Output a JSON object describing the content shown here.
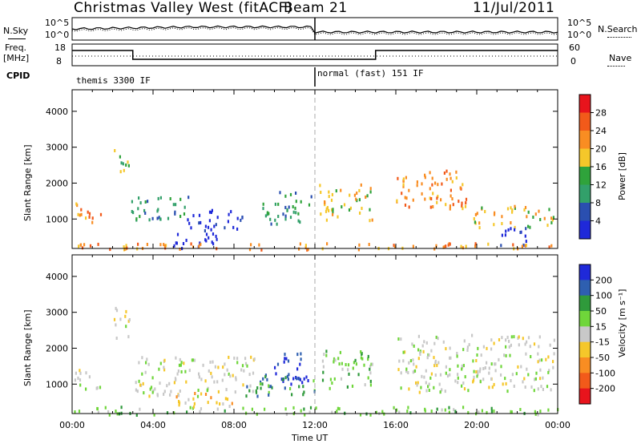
{
  "header": {
    "station": "Christmas Valley West (fitACF)",
    "beam": "Beam 21",
    "date": "11/Jul/2011"
  },
  "status_panels": {
    "nsky_label": "N.Sky",
    "nsky_ticks": [
      "10^5",
      "10^0"
    ],
    "nsearch_label": "N.Search",
    "nsearch_ticks": [
      "10^5",
      "10^0"
    ],
    "freq_label": "Freq.",
    "freq_unit": "[MHz]",
    "freq_ticks": [
      "18",
      "8"
    ],
    "nave_label": "Nave",
    "nave_ticks": [
      "60",
      "0"
    ],
    "cpid_label": "CPID",
    "cpid_segments": [
      "themis 3300 IF",
      "normal (fast) 151 IF"
    ]
  },
  "chart_data": [
    {
      "type": "heatmap",
      "name": "power",
      "ylabel": "Slant Range [km]",
      "xlabel": "Time UT",
      "xlim": [
        "00:00",
        "24:00"
      ],
      "ylim": [
        180,
        4600
      ],
      "yticks": [
        1000,
        2000,
        3000,
        4000
      ],
      "xticks": [
        "00:00",
        "04:00",
        "08:00",
        "12:00",
        "16:00",
        "20:00",
        "00:00"
      ],
      "colorbar": {
        "label": "Power [dB]",
        "ticks": [
          "28",
          "24",
          "20",
          "16",
          "12",
          "8",
          "4"
        ],
        "colors": [
          "#e8141c",
          "#f25a1a",
          "#f98d22",
          "#f5c72a",
          "#2fa33b",
          "#32a06a",
          "#2a4fb0",
          "#1f29d9"
        ]
      },
      "regions": [
        {
          "t0": 0.1,
          "t1": 1.4,
          "r0": 900,
          "r1": 1500,
          "level": 2
        },
        {
          "t0": 2.0,
          "t1": 2.8,
          "r0": 2300,
          "r1": 3000,
          "level": 4
        },
        {
          "t0": 2.9,
          "t1": 5.8,
          "r0": 1000,
          "r1": 1700,
          "level": 5
        },
        {
          "t0": 5.6,
          "t1": 8.4,
          "r0": 700,
          "r1": 1300,
          "level": 7
        },
        {
          "t0": 4.8,
          "t1": 7.2,
          "r0": 200,
          "r1": 650,
          "level": 8
        },
        {
          "t0": 9.4,
          "t1": 11.8,
          "r0": 900,
          "r1": 1800,
          "level": 5
        },
        {
          "t0": 12.2,
          "t1": 14.8,
          "r0": 1000,
          "r1": 2000,
          "level": 3
        },
        {
          "t0": 16.0,
          "t1": 19.5,
          "r0": 1300,
          "r1": 2400,
          "level": 2
        },
        {
          "t0": 19.8,
          "t1": 23.8,
          "r0": 800,
          "r1": 1400,
          "level": 3
        },
        {
          "t0": 21.0,
          "t1": 22.5,
          "r0": 300,
          "r1": 800,
          "level": 7
        },
        {
          "t0": 0.0,
          "t1": 24.0,
          "r0": 180,
          "r1": 360,
          "level": 2
        }
      ]
    },
    {
      "type": "heatmap",
      "name": "velocity",
      "ylabel": "Slant Range [km]",
      "xlabel": "Time UT",
      "xlim": [
        "00:00",
        "24:00"
      ],
      "ylim": [
        180,
        4600
      ],
      "yticks": [
        1000,
        2000,
        3000,
        4000
      ],
      "xticks": [
        "00:00",
        "04:00",
        "08:00",
        "12:00",
        "16:00",
        "20:00",
        "00:00"
      ],
      "colorbar": {
        "label": "Velocity [m s⁻¹]",
        "ticks": [
          "200",
          "100",
          "50",
          "15",
          "-15",
          "-50",
          "-100",
          "-200"
        ],
        "colors": [
          "#1f29d9",
          "#2e5fb0",
          "#2f9a3b",
          "#6fd63a",
          "#c8c8c8",
          "#f5c72a",
          "#f98d22",
          "#f25a1a",
          "#e8141c"
        ]
      },
      "regions": [
        {
          "t0": 0.1,
          "t1": 1.4,
          "r0": 900,
          "r1": 1500,
          "level": 4
        },
        {
          "t0": 2.0,
          "t1": 2.8,
          "r0": 2300,
          "r1": 3200,
          "level": 4
        },
        {
          "t0": 3.0,
          "t1": 9.0,
          "r0": 700,
          "r1": 1800,
          "level": 4
        },
        {
          "t0": 9.8,
          "t1": 11.7,
          "r0": 1000,
          "r1": 1900,
          "level": 0
        },
        {
          "t0": 8.5,
          "t1": 12.0,
          "r0": 700,
          "r1": 1300,
          "level": 2
        },
        {
          "t0": 12.2,
          "t1": 14.8,
          "r0": 900,
          "r1": 2000,
          "level": 3
        },
        {
          "t0": 16.0,
          "t1": 23.8,
          "r0": 800,
          "r1": 2400,
          "level": 4
        },
        {
          "t0": 0.0,
          "t1": 24.0,
          "r0": 180,
          "r1": 400,
          "level": 3
        },
        {
          "t0": 5.0,
          "t1": 8.0,
          "r0": 400,
          "r1": 800,
          "level": 5
        }
      ]
    }
  ]
}
